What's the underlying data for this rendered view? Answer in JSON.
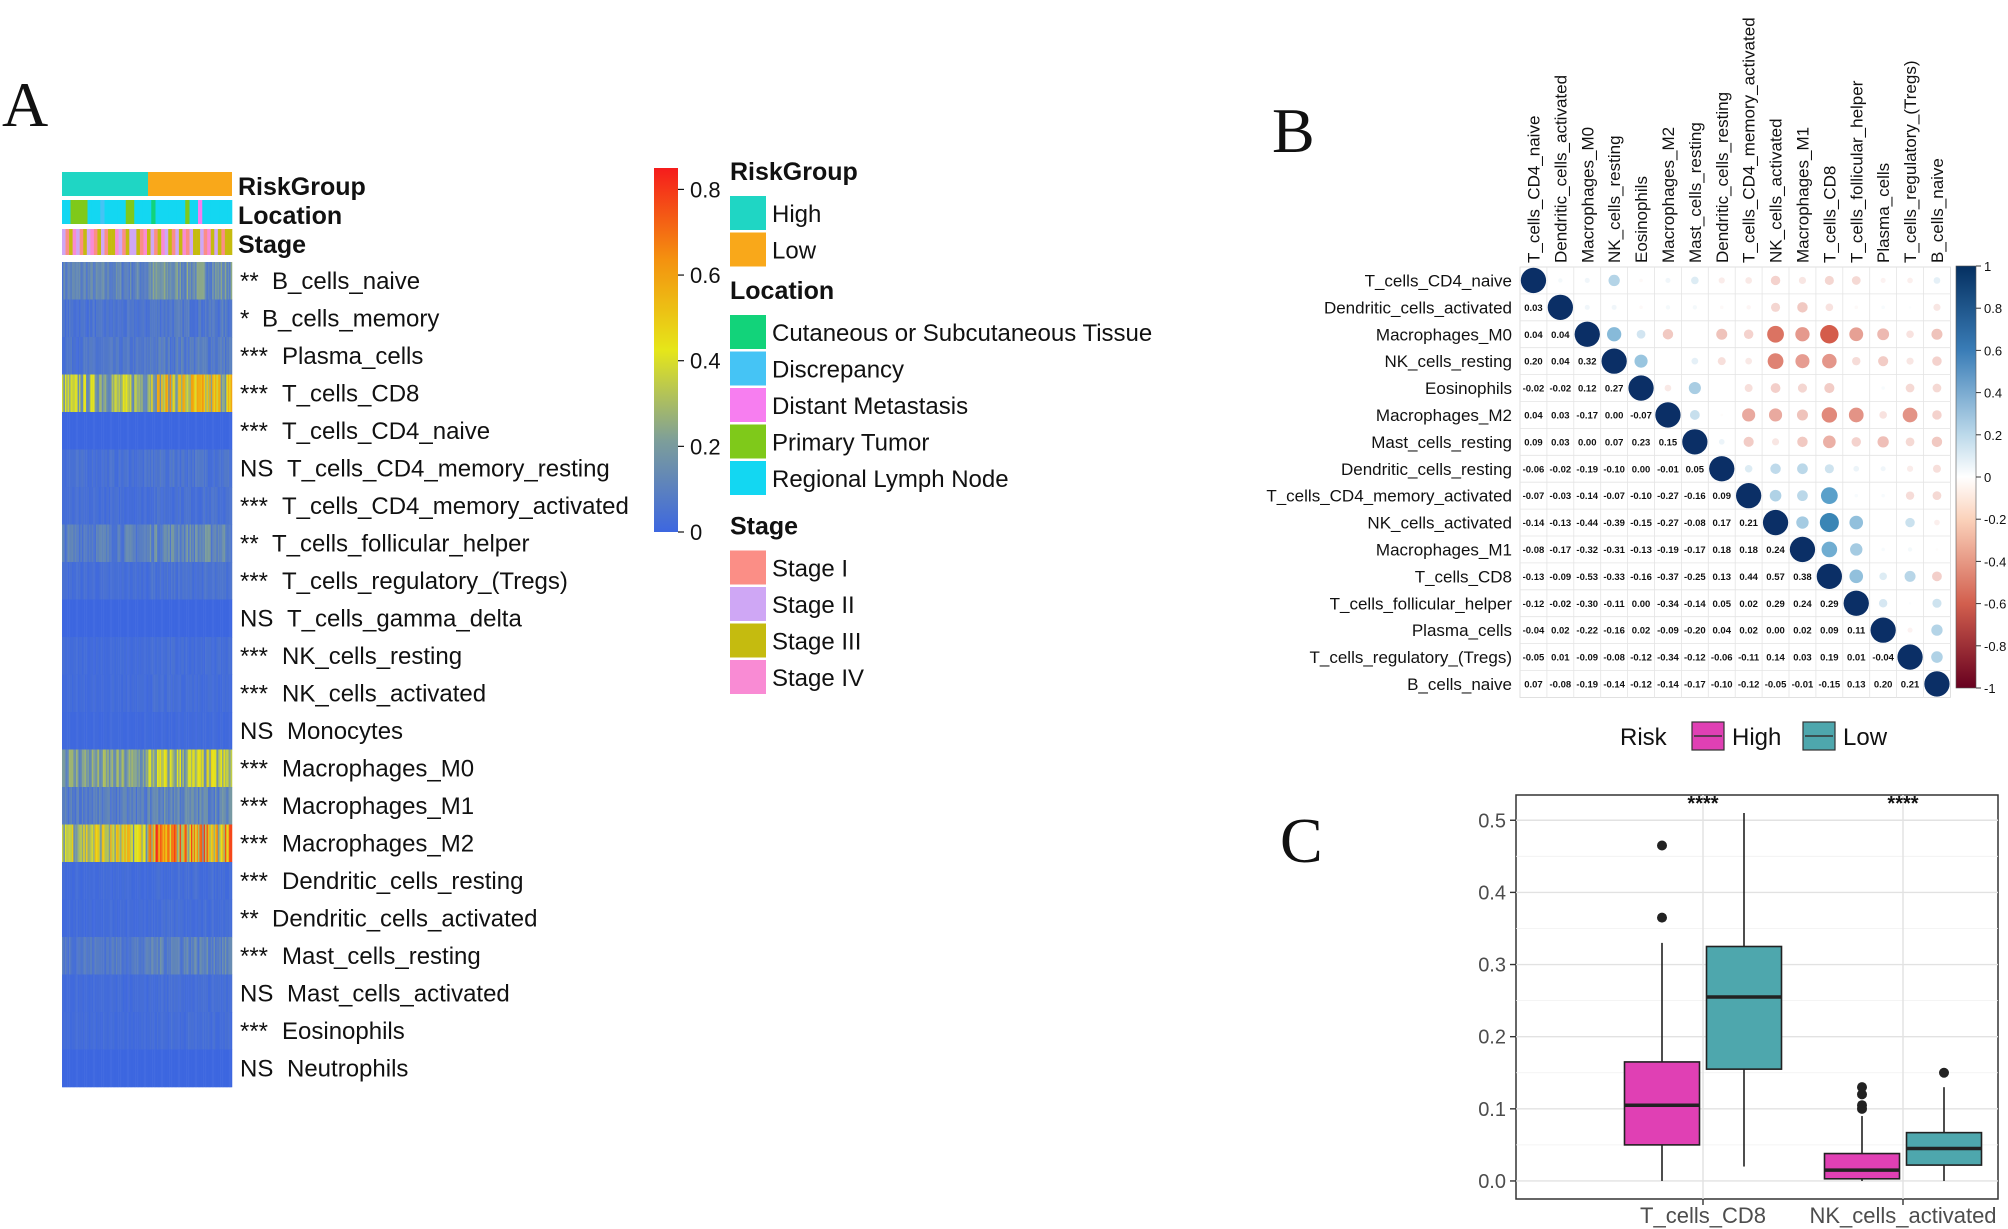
{
  "panels": {
    "a": "A",
    "b": "B",
    "c": "C"
  },
  "chart_data": [
    {
      "type": "heatmap",
      "panel": "A",
      "annotation_rows": [
        "RiskGroup",
        "Location",
        "Stage"
      ],
      "rows": [
        {
          "sig": "**",
          "name": "B_cells_naive",
          "level": 0.12
        },
        {
          "sig": "*",
          "name": "B_cells_memory",
          "level": 0.05
        },
        {
          "sig": "***",
          "name": "Plasma_cells",
          "level": 0.06
        },
        {
          "sig": "***",
          "name": "T_cells_CD8",
          "level": 0.3
        },
        {
          "sig": "***",
          "name": "T_cells_CD4_naive",
          "level": 0.0
        },
        {
          "sig": "NS",
          "name": "T_cells_CD4_memory_resting",
          "level": 0.04
        },
        {
          "sig": "***",
          "name": "T_cells_CD4_memory_activated",
          "level": 0.03
        },
        {
          "sig": "**",
          "name": "T_cells_follicular_helper",
          "level": 0.1
        },
        {
          "sig": "***",
          "name": "T_cells_regulatory_(Tregs)",
          "level": 0.03
        },
        {
          "sig": "NS",
          "name": "T_cells_gamma_delta",
          "level": 0.0
        },
        {
          "sig": "***",
          "name": "NK_cells_resting",
          "level": 0.02
        },
        {
          "sig": "***",
          "name": "NK_cells_activated",
          "level": 0.02
        },
        {
          "sig": "NS",
          "name": "Monocytes",
          "level": 0.01
        },
        {
          "sig": "***",
          "name": "Macrophages_M0",
          "level": 0.22
        },
        {
          "sig": "***",
          "name": "Macrophages_M1",
          "level": 0.09
        },
        {
          "sig": "***",
          "name": "Macrophages_M2",
          "level": 0.4
        },
        {
          "sig": "***",
          "name": "Dendritic_cells_resting",
          "level": 0.02
        },
        {
          "sig": "**",
          "name": "Dendritic_cells_activated",
          "level": 0.02
        },
        {
          "sig": "***",
          "name": "Mast_cells_resting",
          "level": 0.08
        },
        {
          "sig": "NS",
          "name": "Mast_cells_activated",
          "level": 0.02
        },
        {
          "sig": "***",
          "name": "Eosinophils",
          "level": 0.02
        },
        {
          "sig": "NS",
          "name": "Neutrophils",
          "level": 0.0
        }
      ],
      "colorbar": {
        "min": 0,
        "max": 0.85,
        "ticks": [
          "0.8",
          "0.6",
          "0.4",
          "0.2",
          "0"
        ],
        "tick_values": [
          0.8,
          0.6,
          0.4,
          0.2,
          0
        ]
      },
      "legends": [
        {
          "title": "RiskGroup",
          "items": [
            {
              "label": "High",
              "color": "#1fd6c4"
            },
            {
              "label": "Low",
              "color": "#f9a81a"
            }
          ]
        },
        {
          "title": "Location",
          "items": [
            {
              "label": "Cutaneous or Subcutaneous Tissue",
              "color": "#12d37a"
            },
            {
              "label": "Discrepancy",
              "color": "#45c4f5"
            },
            {
              "label": "Distant Metastasis",
              "color": "#f77ef0"
            },
            {
              "label": "Primary Tumor",
              "color": "#7fc91a"
            },
            {
              "label": "Regional Lymph Node",
              "color": "#13d7f2"
            }
          ]
        },
        {
          "title": "Stage",
          "items": [
            {
              "label": "Stage I",
              "color": "#fb8e86"
            },
            {
              "label": "Stage II",
              "color": "#cfa7f5"
            },
            {
              "label": "Stage III",
              "color": "#c5bb0f"
            },
            {
              "label": "Stage IV",
              "color": "#f98bd4"
            }
          ]
        }
      ]
    },
    {
      "type": "heatmap",
      "panel": "B",
      "variables": [
        "T_cells_CD4_naive",
        "Dendritic_cells_activated",
        "Macrophages_M0",
        "NK_cells_resting",
        "Eosinophils",
        "Macrophages_M2",
        "Mast_cells_resting",
        "Dendritic_cells_resting",
        "T_cells_CD4_memory_activated",
        "NK_cells_activated",
        "Macrophages_M1",
        "T_cells_CD8",
        "T_cells_follicular_helper",
        "Plasma_cells",
        "T_cells_regulatory_(Tregs)",
        "B_cells_naive"
      ],
      "lower_values": [
        [],
        [
          "0.03"
        ],
        [
          "0.04",
          "0.04"
        ],
        [
          "0.20",
          "0.04",
          "0.32"
        ],
        [
          "-0.02",
          "-0.02",
          "0.12",
          "0.27"
        ],
        [
          "0.04",
          "0.03",
          "-0.17",
          "0.00",
          "-0.07"
        ],
        [
          "0.09",
          "0.03",
          "0.00",
          "0.07",
          "0.23",
          "0.15"
        ],
        [
          "-0.06",
          "-0.02",
          "-0.19",
          "-0.10",
          "0.00",
          "-0.01",
          "0.05"
        ],
        [
          "-0.07",
          "-0.03",
          "-0.14",
          "-0.07",
          "-0.10",
          "-0.27",
          "-0.16",
          "0.09"
        ],
        [
          "-0.14",
          "-0.13",
          "-0.44",
          "-0.39",
          "-0.15",
          "-0.27",
          "-0.08",
          "0.17",
          "0.21"
        ],
        [
          "-0.08",
          "-0.17",
          "-0.32",
          "-0.31",
          "-0.13",
          "-0.19",
          "-0.17",
          "0.18",
          "0.18",
          "0.24"
        ],
        [
          "-0.13",
          "-0.09",
          "-0.53",
          "-0.33",
          "-0.16",
          "-0.37",
          "-0.25",
          "0.13",
          "0.44",
          "0.57",
          "0.38"
        ],
        [
          "-0.12",
          "-0.02",
          "-0.30",
          "-0.11",
          "0.00",
          "-0.34",
          "-0.14",
          "0.05",
          "0.02",
          "0.29",
          "0.24",
          "0.29"
        ],
        [
          "-0.04",
          "0.02",
          "-0.22",
          "-0.16",
          "0.02",
          "-0.09",
          "-0.20",
          "0.04",
          "0.02",
          "0.00",
          "0.02",
          "0.09",
          "0.11"
        ],
        [
          "-0.05",
          "0.01",
          "-0.09",
          "-0.08",
          "-0.12",
          "-0.34",
          "-0.12",
          "-0.06",
          "-0.11",
          "0.14",
          "0.03",
          "0.19",
          "0.01",
          "-0.04"
        ],
        [
          "0.07",
          "-0.08",
          "-0.19",
          "-0.14",
          "-0.12",
          "-0.14",
          "-0.17",
          "-0.10",
          "-0.12",
          "-0.05",
          "-0.01",
          "-0.15",
          "0.13",
          "0.20",
          "0.21"
        ]
      ],
      "colorbar": {
        "min": -1,
        "max": 1,
        "ticks": [
          "1",
          "0.8",
          "0.6",
          "0.4",
          "0.2",
          "0",
          "-0.2",
          "-0.4",
          "-0.6",
          "-0.8",
          "-1"
        ]
      }
    },
    {
      "type": "box",
      "panel": "C",
      "legend_title": "Risk",
      "groups": [
        {
          "name": "High",
          "color": "#e040b4"
        },
        {
          "name": "Low",
          "color": "#4ea7ad"
        }
      ],
      "categories": [
        "T_cells_CD8",
        "NK_cells_activated"
      ],
      "significance": [
        "****",
        "****"
      ],
      "ylim": [
        -0.025,
        0.535
      ],
      "yticks": [
        "0.0",
        "0.1",
        "0.2",
        "0.3",
        "0.4",
        "0.5"
      ],
      "ytick_values": [
        0.0,
        0.1,
        0.2,
        0.3,
        0.4,
        0.5
      ],
      "boxes": [
        {
          "category": "T_cells_CD8",
          "group": "High",
          "lower_whisker": 0.0,
          "q1": 0.05,
          "median": 0.105,
          "q3": 0.165,
          "upper_whisker": 0.33,
          "outliers": [
            0.365,
            0.465
          ]
        },
        {
          "category": "T_cells_CD8",
          "group": "Low",
          "lower_whisker": 0.02,
          "q1": 0.155,
          "median": 0.255,
          "q3": 0.325,
          "upper_whisker": 0.51,
          "outliers": []
        },
        {
          "category": "NK_cells_activated",
          "group": "High",
          "lower_whisker": 0.0,
          "q1": 0.003,
          "median": 0.015,
          "q3": 0.038,
          "upper_whisker": 0.09,
          "outliers": [
            0.1,
            0.105,
            0.12,
            0.13
          ]
        },
        {
          "category": "NK_cells_activated",
          "group": "Low",
          "lower_whisker": 0.0,
          "q1": 0.022,
          "median": 0.045,
          "q3": 0.067,
          "upper_whisker": 0.13,
          "outliers": [
            0.15
          ]
        }
      ]
    }
  ]
}
